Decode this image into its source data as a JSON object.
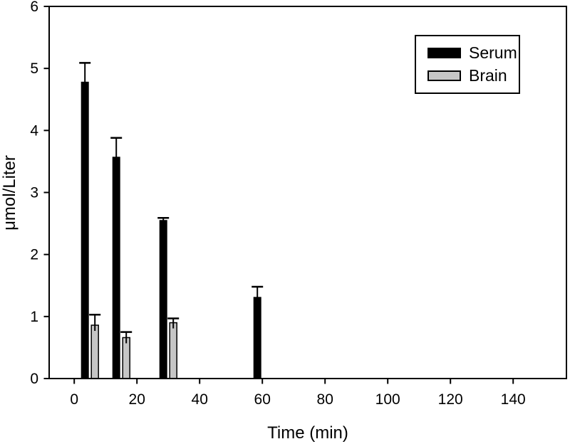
{
  "figure": {
    "background_color": "#ffffff",
    "text_color": "#000000"
  },
  "chart_data": {
    "type": "bar",
    "title": "",
    "xlabel": "Time (min)",
    "ylabel": "μmol/Liter",
    "categories": [
      5,
      15,
      30,
      60
    ],
    "series": [
      {
        "name": "Serum",
        "color": "#000000",
        "values": [
          4.78,
          3.57,
          2.55,
          1.31
        ],
        "errors_plus": [
          0.31,
          0.31,
          0.04,
          0.17
        ]
      },
      {
        "name": "Brain",
        "color": "#c6c6c6",
        "values": [
          0.86,
          0.66,
          0.9,
          null
        ],
        "errors_plus": [
          0.17,
          0.09,
          0.07,
          null
        ]
      }
    ],
    "xlim": [
      -8,
      157
    ],
    "ylim": [
      0,
      6
    ],
    "x_ticks": [
      0,
      20,
      40,
      60,
      80,
      100,
      120,
      140
    ],
    "y_ticks": [
      0,
      1,
      2,
      3,
      4,
      5,
      6
    ],
    "grid": false,
    "frame": "full-box",
    "error_bars": "upper-only",
    "legend_position": "top-right"
  }
}
